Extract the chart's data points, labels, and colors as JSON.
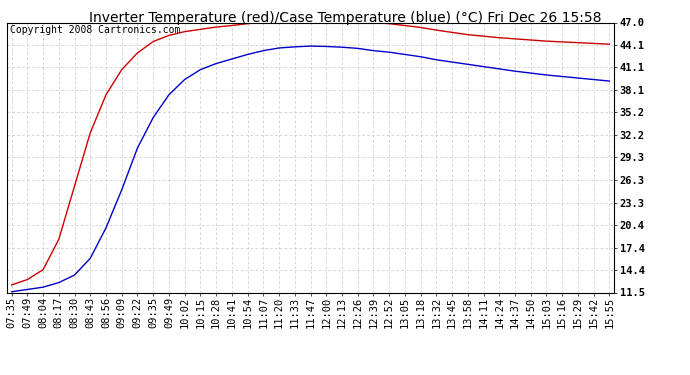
{
  "title": "Inverter Temperature (red)/Case Temperature (blue) (°C) Fri Dec 26 15:58",
  "copyright": "Copyright 2008 Cartronics.com",
  "background_color": "#ffffff",
  "plot_bg_color": "#ffffff",
  "grid_color": "#c8c8c8",
  "x_labels": [
    "07:35",
    "07:49",
    "08:04",
    "08:17",
    "08:30",
    "08:43",
    "08:56",
    "09:09",
    "09:22",
    "09:35",
    "09:49",
    "10:02",
    "10:15",
    "10:28",
    "10:41",
    "10:54",
    "11:07",
    "11:20",
    "11:33",
    "11:47",
    "12:00",
    "12:13",
    "12:26",
    "12:39",
    "12:52",
    "13:05",
    "13:18",
    "13:32",
    "13:45",
    "13:58",
    "14:11",
    "14:24",
    "14:37",
    "14:50",
    "15:03",
    "15:16",
    "15:29",
    "15:42",
    "15:55"
  ],
  "y_ticks": [
    11.5,
    14.4,
    17.4,
    20.4,
    23.3,
    26.3,
    29.3,
    32.2,
    35.2,
    38.1,
    41.1,
    44.1,
    47.0
  ],
  "red_data": [
    12.5,
    13.2,
    14.5,
    18.5,
    25.5,
    32.5,
    37.5,
    40.8,
    43.0,
    44.5,
    45.3,
    45.8,
    46.1,
    46.4,
    46.6,
    46.85,
    47.0,
    47.15,
    47.2,
    47.15,
    47.1,
    47.05,
    47.0,
    46.95,
    46.85,
    46.6,
    46.35,
    46.0,
    45.7,
    45.4,
    45.2,
    45.0,
    44.85,
    44.7,
    44.55,
    44.45,
    44.35,
    44.25,
    44.15
  ],
  "blue_data": [
    11.6,
    11.9,
    12.2,
    12.8,
    13.8,
    16.0,
    20.0,
    25.0,
    30.5,
    34.5,
    37.5,
    39.5,
    40.8,
    41.6,
    42.2,
    42.8,
    43.3,
    43.65,
    43.8,
    43.9,
    43.85,
    43.75,
    43.6,
    43.3,
    43.1,
    42.8,
    42.5,
    42.1,
    41.8,
    41.5,
    41.2,
    40.9,
    40.6,
    40.35,
    40.1,
    39.9,
    39.7,
    39.5,
    39.3
  ],
  "red_color": "#cc0000",
  "blue_color": "#0000cc",
  "title_fontsize": 10,
  "copyright_fontsize": 7,
  "tick_fontsize": 7.5,
  "linewidth": 1.0
}
